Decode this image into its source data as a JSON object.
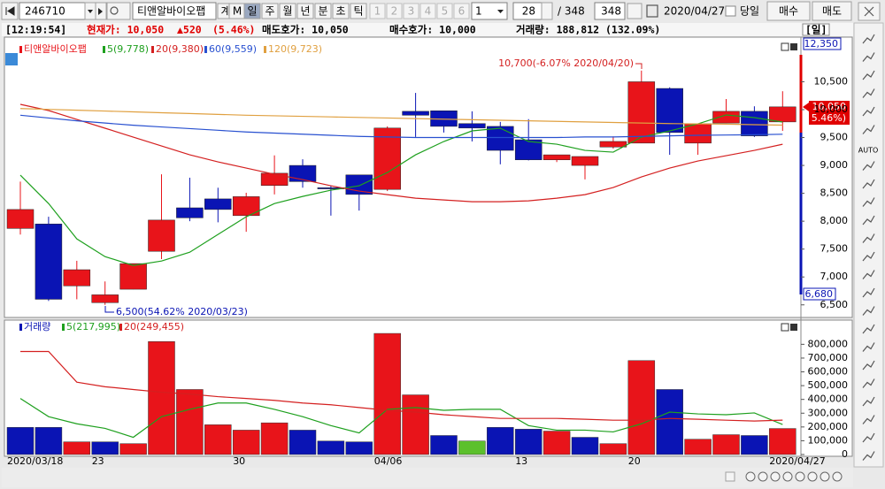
{
  "toolbar": {
    "code": "246710",
    "name": "티앤알바이오팹",
    "buttons": [
      "계",
      "M",
      "일",
      "주",
      "월",
      "년",
      "분",
      "초",
      "틱"
    ],
    "numbers": [
      "1",
      "2",
      "3",
      "4",
      "5",
      "6"
    ],
    "dropdown": "1",
    "count": "28",
    "total": "/ 348",
    "total_box": "348",
    "date": "2020/04/27",
    "today": "당일",
    "buy": "매수",
    "sell": "매도"
  },
  "status": {
    "time": "[12:19:54]",
    "price": "현재가: 10,050",
    "change": "▲520",
    "rate": "(5.46%)",
    "ask": "매도호가: 10,050",
    "bid": "매수호가: 10,000",
    "volume": "거래량: 188,812 (132.09%)",
    "period": "[일]"
  },
  "sidebar": {
    "auto": "AUTO"
  },
  "chart_data": [
    {
      "type": "candlestick",
      "name": "티앤알바이오팹",
      "up_color": "#e8141a",
      "down_color": "#0a14b4",
      "open": [
        7870,
        7950,
        6840,
        6540,
        6780,
        7460,
        8240,
        8400,
        8100,
        8640,
        9000,
        8600,
        8830,
        8570,
        9970,
        9980,
        9750,
        9700,
        9460,
        9100,
        9000,
        9330,
        9400,
        10380,
        9400,
        9760,
        9970,
        9780
      ],
      "high": [
        8710,
        8080,
        7290,
        6920,
        7240,
        8840,
        8780,
        8600,
        8510,
        9180,
        9110,
        8640,
        8830,
        9700,
        10300,
        9980,
        9970,
        9780,
        9830,
        9190,
        9160,
        9520,
        10700,
        10400,
        9750,
        10190,
        10060,
        10330
      ],
      "low": [
        7760,
        6570,
        6600,
        6500,
        6780,
        7320,
        8000,
        7980,
        7810,
        8480,
        8600,
        8100,
        8190,
        8540,
        9510,
        9590,
        9430,
        9020,
        9090,
        9060,
        8750,
        9300,
        9400,
        9190,
        9190,
        9760,
        9510,
        9620
      ],
      "close": [
        8210,
        6600,
        7130,
        6680,
        7240,
        8020,
        8060,
        8210,
        8440,
        8860,
        8710,
        8580,
        8480,
        9670,
        9900,
        9700,
        9670,
        9270,
        9100,
        9190,
        9160,
        9430,
        10500,
        9590,
        9750,
        9970,
        9530,
        10050
      ],
      "series": [
        {
          "name": "5(9,778)",
          "color": "#1ea01e",
          "values": [
            8825,
            8317,
            7683,
            7365,
            7206,
            7286,
            7444,
            7762,
            8079,
            8317,
            8444,
            8556,
            8635,
            8873,
            9190,
            9429,
            9619,
            9667,
            9429,
            9381,
            9270,
            9238,
            9508,
            9619,
            9746,
            9905,
            9857,
            9778
          ]
        },
        {
          "name": "20(9,380)",
          "color": "#d42020",
          "values": [
            10095,
            9984,
            9825,
            9667,
            9508,
            9349,
            9190,
            9063,
            8952,
            8841,
            8746,
            8635,
            8540,
            8476,
            8413,
            8381,
            8349,
            8349,
            8365,
            8413,
            8476,
            8603,
            8794,
            8952,
            9079,
            9175,
            9270,
            9380
          ]
        },
        {
          "name": "60(9,559)",
          "color": "#2850d0",
          "values": [
            9900,
            9850,
            9800,
            9760,
            9720,
            9690,
            9660,
            9630,
            9600,
            9580,
            9560,
            9540,
            9520,
            9510,
            9500,
            9500,
            9500,
            9500,
            9500,
            9500,
            9510,
            9510,
            9520,
            9530,
            9540,
            9545,
            9550,
            9559
          ]
        },
        {
          "name": "120(9,723)",
          "color": "#e0a040",
          "values": [
            10020,
            10005,
            9990,
            9975,
            9960,
            9945,
            9930,
            9915,
            9900,
            9890,
            9880,
            9870,
            9860,
            9850,
            9840,
            9830,
            9820,
            9810,
            9800,
            9790,
            9780,
            9770,
            9760,
            9750,
            9745,
            9740,
            9730,
            9723
          ]
        }
      ],
      "ylim": [
        6290,
        11300
      ],
      "yticks": [
        {
          "value": 6500,
          "label": "6,500"
        },
        {
          "value": 7000,
          "label": "7,000"
        },
        {
          "value": 7500,
          "label": "7,500"
        },
        {
          "value": 8000,
          "label": "8,000"
        },
        {
          "value": 8500,
          "label": "8,500"
        },
        {
          "value": 9000,
          "label": "9,000"
        },
        {
          "value": 9500,
          "label": "9,500"
        },
        {
          "value": 10000,
          "label": "10,000"
        },
        {
          "value": 10500,
          "label": "10,500"
        }
      ],
      "annotations": [
        "10,700(-6.07% 2020/04/20)",
        "6,500(54.62% 2020/03/23)"
      ],
      "axis_markers": {
        "upper": "12,350",
        "current": "10,050",
        "current_rate": "( 5.46%)",
        "lower": "6,680"
      }
    },
    {
      "type": "bar",
      "name": "거래량",
      "categories": [
        "2020/03/18",
        null,
        null,
        "23",
        null,
        null,
        null,
        null,
        "30",
        null,
        null,
        null,
        null,
        "04/06",
        null,
        null,
        null,
        null,
        "13",
        null,
        null,
        null,
        "20",
        null,
        null,
        null,
        null,
        "2020/04/27"
      ],
      "values": [
        197000,
        197000,
        92000,
        92000,
        79000,
        820000,
        472000,
        216000,
        177000,
        230000,
        177000,
        98000,
        92000,
        879000,
        433000,
        138000,
        98000,
        197000,
        184000,
        170000,
        125000,
        79000,
        682000,
        472000,
        111000,
        144000,
        138000,
        188812
      ],
      "colors": [
        "#0a14b4",
        "#0a14b4",
        "#e8141a",
        "#0a14b4",
        "#e8141a",
        "#e8141a",
        "#e8141a",
        "#e8141a",
        "#e8141a",
        "#e8141a",
        "#0a14b4",
        "#0a14b4",
        "#0a14b4",
        "#e8141a",
        "#e8141a",
        "#0a14b4",
        "#5cc02c",
        "#0a14b4",
        "#0a14b4",
        "#e8141a",
        "#0a14b4",
        "#e8141a",
        "#e8141a",
        "#0a14b4",
        "#e8141a",
        "#e8141a",
        "#0a14b4",
        "#e8141a"
      ],
      "series": [
        {
          "name": "5(217,995)",
          "color": "#1ea01e",
          "values": [
            407000,
            275000,
            223000,
            190000,
            125000,
            275000,
            328000,
            374000,
            374000,
            328000,
            275000,
            210000,
            157000,
            328000,
            341000,
            321000,
            328000,
            328000,
            210000,
            177000,
            177000,
            164000,
            223000,
            308000,
            295000,
            289000,
            302000,
            217995
          ]
        },
        {
          "name": "20(249,455)",
          "color": "#d42020",
          "values": [
            748000,
            748000,
            525000,
            492000,
            472000,
            452000,
            439000,
            420000,
            407000,
            393000,
            374000,
            361000,
            341000,
            321000,
            308000,
            289000,
            275000,
            262000,
            262000,
            262000,
            256000,
            249000,
            249000,
            262000,
            256000,
            249000,
            243000,
            249455
          ]
        }
      ],
      "ylim": [
        0,
        950000
      ],
      "yticks": [
        0,
        {
          "value": 100000,
          "label": "100,000"
        },
        {
          "value": 200000,
          "label": "200,000"
        },
        {
          "value": 300000,
          "label": "300,000"
        },
        {
          "value": 400000,
          "label": "400,000"
        },
        {
          "value": 500000,
          "label": "500,000"
        },
        {
          "value": 600000,
          "label": "600,000"
        },
        {
          "value": 700000,
          "label": "700,000"
        },
        {
          "value": 800000,
          "label": "800,000"
        }
      ]
    }
  ]
}
